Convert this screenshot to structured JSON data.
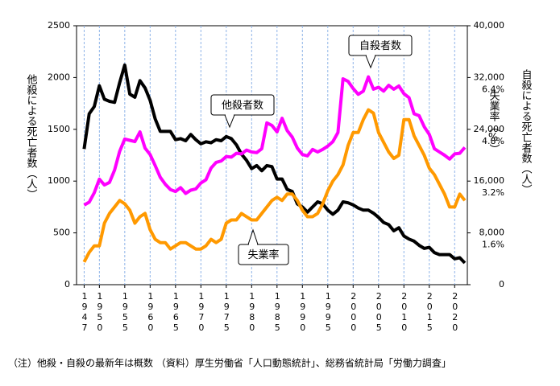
{
  "chart_data": {
    "type": "line",
    "y_label": "他殺による死亡者数（人）",
    "y2_label": "自殺による死亡者数（人）",
    "y3_label": "失業率（%）",
    "note": "（注）他殺・自殺の最新年は概数 （資料）厚生労働省「人口動態統計」、総務省統計局「労働力調査」",
    "annotations": [
      {
        "text": "自殺者数",
        "series": 1
      },
      {
        "text": "他殺者数",
        "series": 0
      },
      {
        "text": "失業率",
        "series": 2
      }
    ],
    "x": [
      1947,
      1948,
      1949,
      1950,
      1951,
      1952,
      1953,
      1954,
      1955,
      1956,
      1957,
      1958,
      1959,
      1960,
      1961,
      1962,
      1963,
      1964,
      1965,
      1966,
      1967,
      1968,
      1969,
      1970,
      1971,
      1972,
      1973,
      1974,
      1975,
      1976,
      1977,
      1978,
      1979,
      1980,
      1981,
      1982,
      1983,
      1984,
      1985,
      1986,
      1987,
      1988,
      1989,
      1990,
      1991,
      1992,
      1993,
      1994,
      1995,
      1996,
      1997,
      1998,
      1999,
      2000,
      2001,
      2002,
      2003,
      2004,
      2005,
      2006,
      2007,
      2008,
      2009,
      2010,
      2011,
      2012,
      2013,
      2014,
      2015,
      2016,
      2017,
      2018,
      2019,
      2020,
      2021,
      2022
    ],
    "xlim": [
      1945.5,
      2022.5
    ],
    "xticks": [
      1947,
      1950,
      1955,
      1960,
      1965,
      1970,
      1975,
      1980,
      1985,
      1990,
      1995,
      2000,
      2005,
      2010,
      2015,
      2020
    ],
    "ylim": [
      0,
      2500
    ],
    "yticks": [
      0,
      500,
      1000,
      1500,
      2000,
      2500
    ],
    "y2lim": [
      0,
      40000
    ],
    "y2ticks": [
      0,
      {
        "value": 8000,
        "label": "8,000"
      },
      {
        "value": 16000,
        "label": "16,000"
      },
      {
        "value": 24000,
        "label": "24,000"
      },
      {
        "value": 32000,
        "label": "32,000"
      },
      {
        "value": 40000,
        "label": "40,000"
      }
    ],
    "y3lim": [
      0,
      8
    ],
    "y3ticks": [
      {
        "value": 1.6,
        "label": "1.6%"
      },
      {
        "value": 3.2,
        "label": "3.2%"
      },
      {
        "value": 4.8,
        "label": "4.8%"
      },
      {
        "value": 6.4,
        "label": "6.4%"
      }
    ],
    "grid": true,
    "series": [
      {
        "name": "他殺者数",
        "color": "#000000",
        "axis": "y",
        "values": [
          1310,
          1650,
          1720,
          1920,
          1790,
          1770,
          1760,
          1950,
          2120,
          1840,
          1810,
          1970,
          1900,
          1780,
          1600,
          1480,
          1480,
          1480,
          1400,
          1410,
          1390,
          1450,
          1400,
          1360,
          1380,
          1370,
          1400,
          1390,
          1430,
          1410,
          1350,
          1260,
          1200,
          1120,
          1150,
          1100,
          1150,
          1140,
          1020,
          1020,
          920,
          900,
          780,
          750,
          700,
          750,
          800,
          780,
          720,
          680,
          720,
          800,
          790,
          770,
          740,
          720,
          720,
          690,
          650,
          600,
          580,
          520,
          550,
          470,
          440,
          420,
          380,
          350,
          360,
          310,
          290,
          290,
          290,
          250,
          260,
          210
        ]
      },
      {
        "name": "自殺者数",
        "color": "#ff00ff",
        "axis": "y2",
        "values": [
          12300,
          12750,
          14200,
          16300,
          15400,
          15800,
          17700,
          20600,
          22500,
          22300,
          22100,
          23600,
          21100,
          20100,
          18400,
          16600,
          15500,
          14700,
          14400,
          15000,
          14100,
          14600,
          14800,
          15700,
          16200,
          18000,
          18900,
          19100,
          19800,
          19700,
          20300,
          20200,
          20800,
          20500,
          20400,
          21000,
          25000,
          24600,
          23600,
          25700,
          23800,
          22800,
          21100,
          20100,
          19900,
          20900,
          20500,
          20900,
          21400,
          22100,
          23500,
          31800,
          31400,
          30300,
          29400,
          29900,
          32100,
          30200,
          30500,
          29900,
          30800,
          30200,
          30700,
          29500,
          28900,
          26400,
          26100,
          24400,
          23200,
          21000,
          20500,
          20000,
          19400,
          20200,
          20300,
          21200
        ]
      },
      {
        "name": "失業率",
        "color": "#ff9900",
        "axis": "y3",
        "values": [
          0.7,
          1.0,
          1.2,
          1.2,
          1.9,
          2.2,
          2.4,
          2.6,
          2.5,
          2.3,
          1.9,
          2.1,
          2.2,
          1.7,
          1.4,
          1.3,
          1.3,
          1.1,
          1.2,
          1.3,
          1.3,
          1.2,
          1.1,
          1.1,
          1.2,
          1.4,
          1.3,
          1.4,
          1.9,
          2.0,
          2.0,
          2.2,
          2.1,
          2.0,
          2.0,
          2.2,
          2.4,
          2.6,
          2.7,
          2.6,
          2.8,
          2.8,
          2.6,
          2.3,
          2.1,
          2.1,
          2.2,
          2.5,
          2.9,
          3.2,
          3.4,
          3.7,
          4.3,
          4.7,
          4.7,
          5.1,
          5.4,
          5.3,
          4.7,
          4.4,
          4.1,
          3.9,
          4.0,
          5.1,
          5.1,
          4.6,
          4.3,
          4.0,
          3.6,
          3.4,
          3.1,
          2.8,
          2.4,
          2.4,
          2.8,
          2.6
        ]
      }
    ]
  }
}
